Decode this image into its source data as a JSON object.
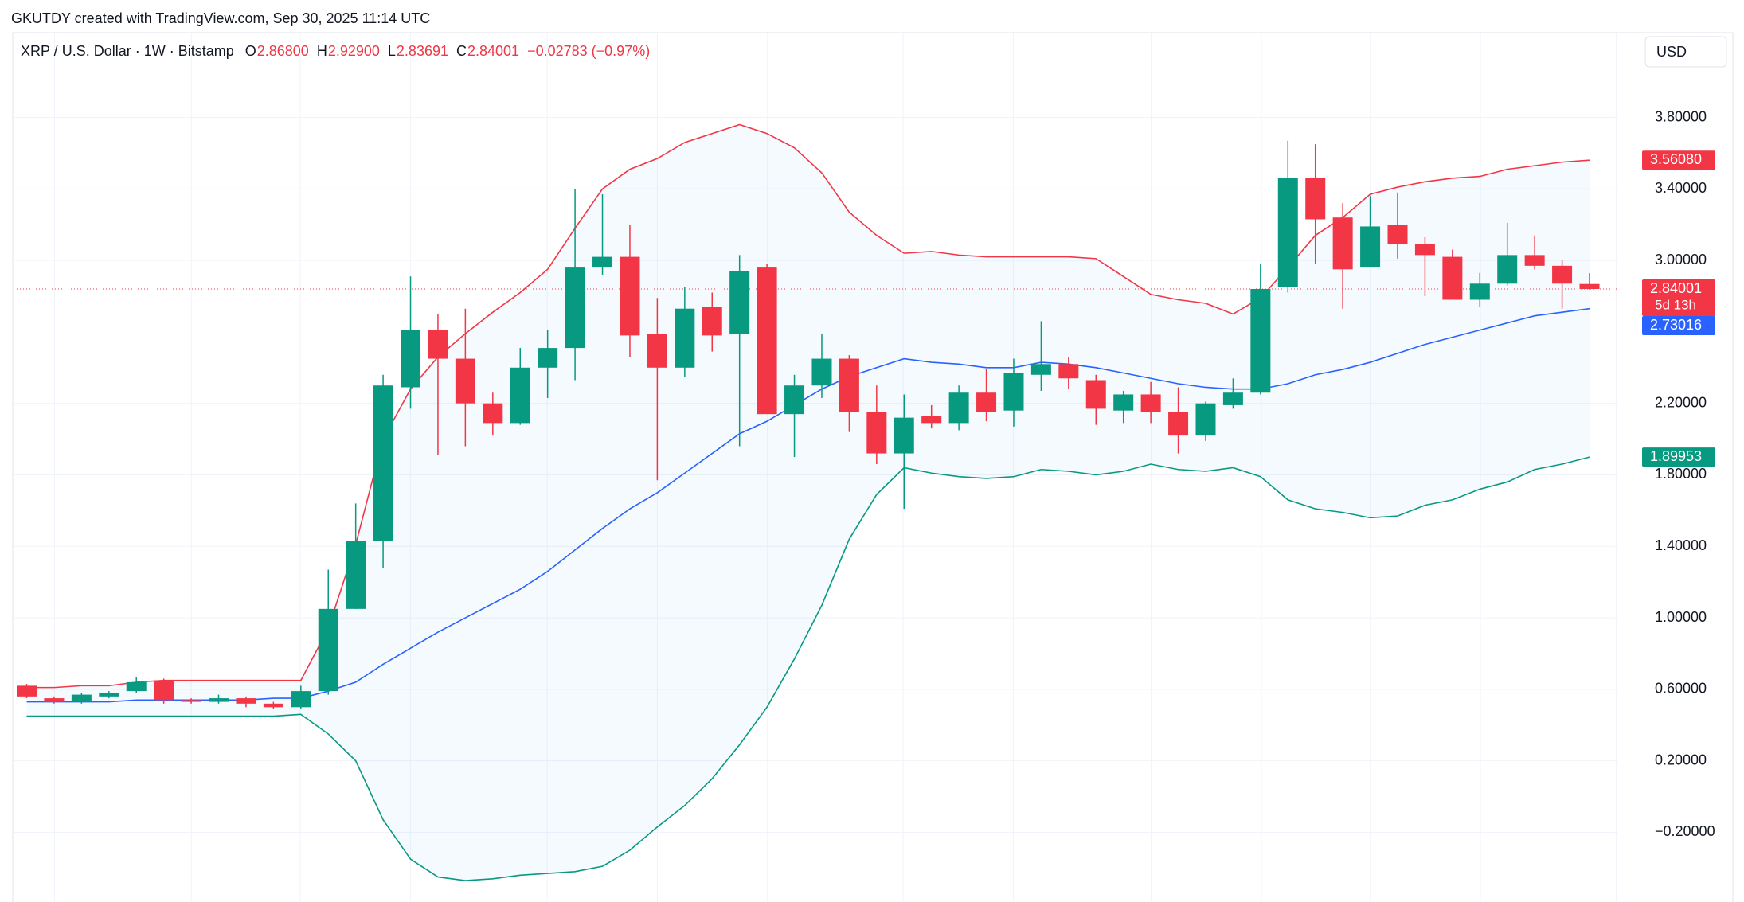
{
  "header": {
    "attribution": "GKUTDY created with TradingView.com, Sep 30, 2025 11:14 UTC"
  },
  "legend": {
    "items": [
      {
        "key": "O",
        "value": "2.86800"
      },
      {
        "key": "H",
        "value": "2.92900"
      },
      {
        "key": "L",
        "value": "2.83691"
      },
      {
        "key": "C",
        "value": "2.84001"
      }
    ],
    "change": "−0.02783 (−0.97%)"
  },
  "currency_button": "USD",
  "chart_data": {
    "type": "candlestick",
    "title": "XRP / U.S. Dollar · 1W · Bitstamp",
    "up_color": "#089981",
    "down_color": "#f23645",
    "open": [
      0.62,
      0.55,
      0.53,
      0.56,
      0.59,
      0.65,
      0.54,
      0.53,
      0.55,
      0.52,
      0.5,
      0.59,
      1.05,
      1.43,
      2.29,
      2.61,
      2.45,
      2.2,
      2.09,
      2.4,
      2.51,
      2.96,
      3.02,
      2.59,
      2.4,
      2.74,
      2.59,
      2.96,
      2.14,
      2.3,
      2.45,
      2.15,
      1.92,
      2.13,
      2.09,
      2.26,
      2.16,
      2.36,
      2.42,
      2.33,
      2.16,
      2.25,
      2.15,
      2.02,
      2.19,
      2.26,
      2.85,
      3.46,
      3.24,
      2.96,
      3.2,
      3.09,
      3.02,
      2.78,
      2.87,
      3.03,
      2.97,
      2.868
    ],
    "high": [
      0.63,
      0.56,
      0.58,
      0.59,
      0.67,
      0.66,
      0.55,
      0.57,
      0.56,
      0.53,
      0.62,
      1.27,
      1.64,
      2.36,
      2.91,
      2.7,
      2.73,
      2.26,
      2.51,
      2.61,
      3.4,
      3.37,
      3.2,
      2.79,
      2.85,
      2.82,
      3.03,
      2.98,
      2.36,
      2.59,
      2.47,
      2.3,
      2.25,
      2.19,
      2.3,
      2.39,
      2.45,
      2.66,
      2.46,
      2.36,
      2.27,
      2.32,
      2.29,
      2.21,
      2.34,
      2.98,
      3.67,
      3.65,
      3.32,
      3.36,
      3.38,
      3.13,
      3.06,
      2.93,
      3.21,
      3.14,
      3.0,
      2.929
    ],
    "low": [
      0.55,
      0.52,
      0.52,
      0.55,
      0.58,
      0.52,
      0.52,
      0.52,
      0.5,
      0.49,
      0.49,
      0.57,
      1.05,
      1.28,
      2.17,
      1.91,
      1.96,
      2.02,
      2.08,
      2.23,
      2.33,
      2.92,
      2.46,
      1.77,
      2.35,
      2.49,
      1.96,
      2.14,
      1.9,
      2.23,
      2.04,
      1.86,
      1.61,
      2.06,
      2.05,
      2.1,
      2.07,
      2.27,
      2.28,
      2.08,
      2.09,
      2.09,
      1.92,
      1.99,
      2.17,
      2.25,
      2.82,
      2.98,
      2.73,
      2.96,
      3.01,
      2.8,
      2.78,
      2.74,
      2.86,
      2.95,
      2.73,
      2.83691
    ],
    "close": [
      0.56,
      0.53,
      0.57,
      0.58,
      0.64,
      0.54,
      0.53,
      0.55,
      0.52,
      0.5,
      0.59,
      1.05,
      1.43,
      2.3,
      2.61,
      2.45,
      2.2,
      2.09,
      2.4,
      2.51,
      2.96,
      3.02,
      2.58,
      2.4,
      2.73,
      2.58,
      2.94,
      2.14,
      2.3,
      2.45,
      2.15,
      1.92,
      2.12,
      2.09,
      2.26,
      2.15,
      2.37,
      2.42,
      2.34,
      2.17,
      2.25,
      2.15,
      2.02,
      2.2,
      2.26,
      2.84,
      3.46,
      3.23,
      2.95,
      3.19,
      3.09,
      3.03,
      2.78,
      2.87,
      3.03,
      2.97,
      2.87,
      2.84001
    ],
    "bands": [
      {
        "color": "#f23645",
        "values": [
          0.61,
          0.61,
          0.62,
          0.62,
          0.64,
          0.65,
          0.65,
          0.65,
          0.65,
          0.65,
          0.65,
          0.94,
          1.41,
          2.0,
          2.28,
          2.46,
          2.59,
          2.71,
          2.82,
          2.95,
          3.18,
          3.4,
          3.51,
          3.57,
          3.66,
          3.71,
          3.76,
          3.71,
          3.63,
          3.49,
          3.27,
          3.14,
          3.04,
          3.05,
          3.03,
          3.02,
          3.02,
          3.02,
          3.02,
          3.01,
          2.91,
          2.81,
          2.78,
          2.76,
          2.7,
          2.79,
          2.96,
          3.14,
          3.24,
          3.37,
          3.41,
          3.44,
          3.46,
          3.47,
          3.51,
          3.53,
          3.55,
          3.5608
        ]
      },
      {
        "color": "#2962ff",
        "values": [
          0.53,
          0.53,
          0.53,
          0.53,
          0.54,
          0.54,
          0.54,
          0.54,
          0.54,
          0.55,
          0.55,
          0.59,
          0.64,
          0.74,
          0.83,
          0.92,
          1.0,
          1.08,
          1.16,
          1.26,
          1.38,
          1.5,
          1.61,
          1.7,
          1.81,
          1.92,
          2.03,
          2.1,
          2.19,
          2.28,
          2.35,
          2.4,
          2.45,
          2.43,
          2.42,
          2.4,
          2.4,
          2.43,
          2.42,
          2.4,
          2.37,
          2.34,
          2.31,
          2.29,
          2.28,
          2.28,
          2.31,
          2.36,
          2.39,
          2.43,
          2.48,
          2.53,
          2.57,
          2.61,
          2.65,
          2.69,
          2.71,
          2.73016
        ]
      },
      {
        "color": "#089981",
        "values": [
          0.45,
          0.45,
          0.45,
          0.45,
          0.45,
          0.45,
          0.45,
          0.45,
          0.45,
          0.45,
          0.46,
          0.35,
          0.2,
          -0.13,
          -0.35,
          -0.45,
          -0.47,
          -0.46,
          -0.44,
          -0.43,
          -0.42,
          -0.39,
          -0.3,
          -0.17,
          -0.05,
          0.1,
          0.29,
          0.5,
          0.77,
          1.07,
          1.44,
          1.69,
          1.84,
          1.81,
          1.79,
          1.78,
          1.79,
          1.83,
          1.82,
          1.8,
          1.82,
          1.86,
          1.83,
          1.82,
          1.84,
          1.79,
          1.66,
          1.61,
          1.59,
          1.56,
          1.57,
          1.63,
          1.66,
          1.72,
          1.76,
          1.83,
          1.86,
          1.89953
        ]
      }
    ],
    "band_fill": "rgba(33,150,243,0.05)",
    "ylim": [
      -0.59,
      4.27
    ],
    "yticks": [
      {
        "value": 3.8,
        "label": "3.80000"
      },
      {
        "value": 3.4,
        "label": "3.40000"
      },
      {
        "value": 3.0,
        "label": "3.00000"
      },
      {
        "value": 2.2,
        "label": "2.20000"
      },
      {
        "value": 1.8,
        "label": "1.80000"
      },
      {
        "value": 1.4,
        "label": "1.40000"
      },
      {
        "value": 1.0,
        "label": "1.00000"
      },
      {
        "value": 0.6,
        "label": "0.60000"
      },
      {
        "value": 0.2,
        "label": "0.20000"
      },
      {
        "value": -0.2,
        "label": "−0.20000"
      }
    ],
    "grid": true,
    "price_labels": [
      {
        "value": 3.5608,
        "label": "3.56080",
        "color": "#f23645"
      },
      {
        "value": 2.84001,
        "label": "2.84001",
        "sub": "5d 13h",
        "color": "#f23645"
      },
      {
        "value": 2.73016,
        "label": "2.73016",
        "color": "#2962ff"
      },
      {
        "value": 1.89953,
        "label": "1.89953",
        "color": "#089981"
      }
    ]
  }
}
